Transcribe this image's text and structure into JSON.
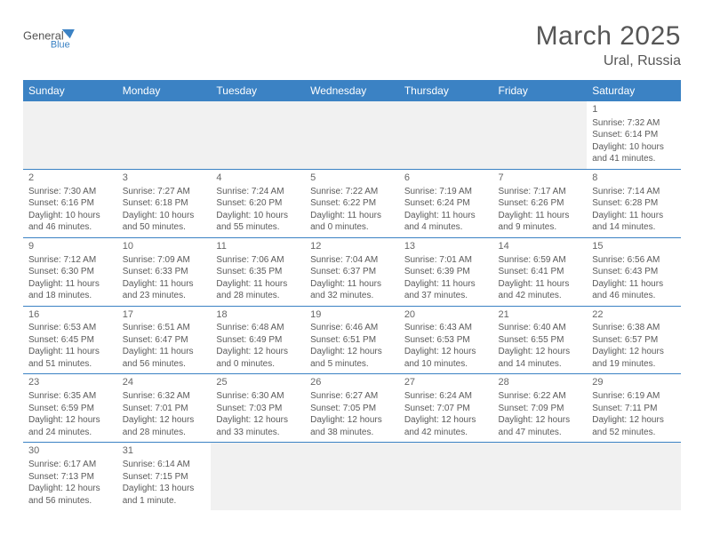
{
  "brand": {
    "name1": "General",
    "name2": "Blue",
    "color1": "#565656",
    "color2": "#3b82c4"
  },
  "title": "March 2025",
  "location": "Ural, Russia",
  "header_bg": "#3b82c4",
  "header_fg": "#ffffff",
  "border_color": "#3b82c4",
  "filler_bg": "#f1f1f1",
  "text_color": "#5a5a5a",
  "weekdays": [
    "Sunday",
    "Monday",
    "Tuesday",
    "Wednesday",
    "Thursday",
    "Friday",
    "Saturday"
  ],
  "weeks": [
    [
      null,
      null,
      null,
      null,
      null,
      null,
      {
        "d": "1",
        "sr": "Sunrise: 7:32 AM",
        "ss": "Sunset: 6:14 PM",
        "dl": "Daylight: 10 hours and 41 minutes."
      }
    ],
    [
      {
        "d": "2",
        "sr": "Sunrise: 7:30 AM",
        "ss": "Sunset: 6:16 PM",
        "dl": "Daylight: 10 hours and 46 minutes."
      },
      {
        "d": "3",
        "sr": "Sunrise: 7:27 AM",
        "ss": "Sunset: 6:18 PM",
        "dl": "Daylight: 10 hours and 50 minutes."
      },
      {
        "d": "4",
        "sr": "Sunrise: 7:24 AM",
        "ss": "Sunset: 6:20 PM",
        "dl": "Daylight: 10 hours and 55 minutes."
      },
      {
        "d": "5",
        "sr": "Sunrise: 7:22 AM",
        "ss": "Sunset: 6:22 PM",
        "dl": "Daylight: 11 hours and 0 minutes."
      },
      {
        "d": "6",
        "sr": "Sunrise: 7:19 AM",
        "ss": "Sunset: 6:24 PM",
        "dl": "Daylight: 11 hours and 4 minutes."
      },
      {
        "d": "7",
        "sr": "Sunrise: 7:17 AM",
        "ss": "Sunset: 6:26 PM",
        "dl": "Daylight: 11 hours and 9 minutes."
      },
      {
        "d": "8",
        "sr": "Sunrise: 7:14 AM",
        "ss": "Sunset: 6:28 PM",
        "dl": "Daylight: 11 hours and 14 minutes."
      }
    ],
    [
      {
        "d": "9",
        "sr": "Sunrise: 7:12 AM",
        "ss": "Sunset: 6:30 PM",
        "dl": "Daylight: 11 hours and 18 minutes."
      },
      {
        "d": "10",
        "sr": "Sunrise: 7:09 AM",
        "ss": "Sunset: 6:33 PM",
        "dl": "Daylight: 11 hours and 23 minutes."
      },
      {
        "d": "11",
        "sr": "Sunrise: 7:06 AM",
        "ss": "Sunset: 6:35 PM",
        "dl": "Daylight: 11 hours and 28 minutes."
      },
      {
        "d": "12",
        "sr": "Sunrise: 7:04 AM",
        "ss": "Sunset: 6:37 PM",
        "dl": "Daylight: 11 hours and 32 minutes."
      },
      {
        "d": "13",
        "sr": "Sunrise: 7:01 AM",
        "ss": "Sunset: 6:39 PM",
        "dl": "Daylight: 11 hours and 37 minutes."
      },
      {
        "d": "14",
        "sr": "Sunrise: 6:59 AM",
        "ss": "Sunset: 6:41 PM",
        "dl": "Daylight: 11 hours and 42 minutes."
      },
      {
        "d": "15",
        "sr": "Sunrise: 6:56 AM",
        "ss": "Sunset: 6:43 PM",
        "dl": "Daylight: 11 hours and 46 minutes."
      }
    ],
    [
      {
        "d": "16",
        "sr": "Sunrise: 6:53 AM",
        "ss": "Sunset: 6:45 PM",
        "dl": "Daylight: 11 hours and 51 minutes."
      },
      {
        "d": "17",
        "sr": "Sunrise: 6:51 AM",
        "ss": "Sunset: 6:47 PM",
        "dl": "Daylight: 11 hours and 56 minutes."
      },
      {
        "d": "18",
        "sr": "Sunrise: 6:48 AM",
        "ss": "Sunset: 6:49 PM",
        "dl": "Daylight: 12 hours and 0 minutes."
      },
      {
        "d": "19",
        "sr": "Sunrise: 6:46 AM",
        "ss": "Sunset: 6:51 PM",
        "dl": "Daylight: 12 hours and 5 minutes."
      },
      {
        "d": "20",
        "sr": "Sunrise: 6:43 AM",
        "ss": "Sunset: 6:53 PM",
        "dl": "Daylight: 12 hours and 10 minutes."
      },
      {
        "d": "21",
        "sr": "Sunrise: 6:40 AM",
        "ss": "Sunset: 6:55 PM",
        "dl": "Daylight: 12 hours and 14 minutes."
      },
      {
        "d": "22",
        "sr": "Sunrise: 6:38 AM",
        "ss": "Sunset: 6:57 PM",
        "dl": "Daylight: 12 hours and 19 minutes."
      }
    ],
    [
      {
        "d": "23",
        "sr": "Sunrise: 6:35 AM",
        "ss": "Sunset: 6:59 PM",
        "dl": "Daylight: 12 hours and 24 minutes."
      },
      {
        "d": "24",
        "sr": "Sunrise: 6:32 AM",
        "ss": "Sunset: 7:01 PM",
        "dl": "Daylight: 12 hours and 28 minutes."
      },
      {
        "d": "25",
        "sr": "Sunrise: 6:30 AM",
        "ss": "Sunset: 7:03 PM",
        "dl": "Daylight: 12 hours and 33 minutes."
      },
      {
        "d": "26",
        "sr": "Sunrise: 6:27 AM",
        "ss": "Sunset: 7:05 PM",
        "dl": "Daylight: 12 hours and 38 minutes."
      },
      {
        "d": "27",
        "sr": "Sunrise: 6:24 AM",
        "ss": "Sunset: 7:07 PM",
        "dl": "Daylight: 12 hours and 42 minutes."
      },
      {
        "d": "28",
        "sr": "Sunrise: 6:22 AM",
        "ss": "Sunset: 7:09 PM",
        "dl": "Daylight: 12 hours and 47 minutes."
      },
      {
        "d": "29",
        "sr": "Sunrise: 6:19 AM",
        "ss": "Sunset: 7:11 PM",
        "dl": "Daylight: 12 hours and 52 minutes."
      }
    ],
    [
      {
        "d": "30",
        "sr": "Sunrise: 6:17 AM",
        "ss": "Sunset: 7:13 PM",
        "dl": "Daylight: 12 hours and 56 minutes."
      },
      {
        "d": "31",
        "sr": "Sunrise: 6:14 AM",
        "ss": "Sunset: 7:15 PM",
        "dl": "Daylight: 13 hours and 1 minute."
      },
      null,
      null,
      null,
      null,
      null
    ]
  ]
}
